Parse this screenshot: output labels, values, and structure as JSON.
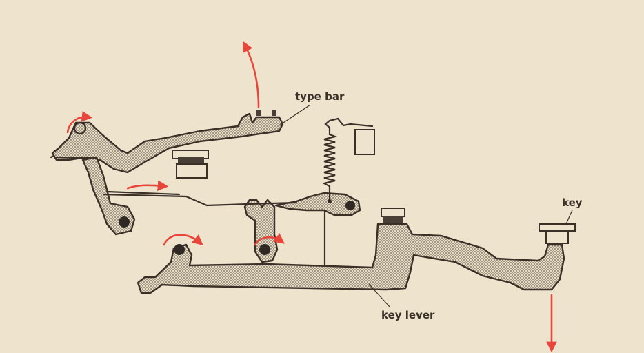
{
  "labels": {
    "type_bar": "type bar",
    "key": "key",
    "key_lever": "key lever"
  },
  "colors": {
    "paper": "#eee4ce",
    "ink": "#3a3028",
    "motion_arrow": "#e8463a"
  }
}
